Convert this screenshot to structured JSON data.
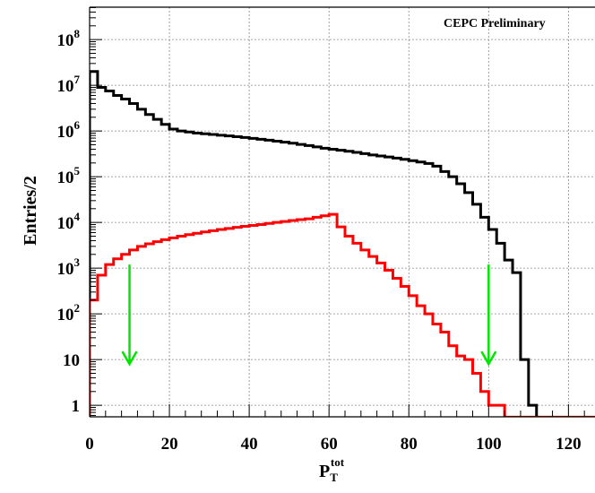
{
  "chart_data": {
    "type": "line",
    "style": "step-histogram",
    "annotation": "CEPC Preliminary",
    "xlabel_main": "P",
    "xlabel_sub": "T",
    "xlabel_sup": "tot",
    "ylabel": "Entries/2",
    "xlim": [
      0,
      127
    ],
    "ylim": [
      0.56,
      500000000
    ],
    "yscale": "log",
    "grid": true,
    "bin_width": 2,
    "x_ticks": [
      {
        "value": 0,
        "label": "0"
      },
      {
        "value": 20,
        "label": "20"
      },
      {
        "value": 40,
        "label": "40"
      },
      {
        "value": 60,
        "label": "60"
      },
      {
        "value": 80,
        "label": "80"
      },
      {
        "value": 100,
        "label": "100"
      },
      {
        "value": 120,
        "label": "120"
      }
    ],
    "y_ticks": [
      {
        "value": 1,
        "base": "1",
        "exp": ""
      },
      {
        "value": 10,
        "base": "10",
        "exp": ""
      },
      {
        "value": 100,
        "base": "10",
        "exp": "2"
      },
      {
        "value": 1000,
        "base": "10",
        "exp": "3"
      },
      {
        "value": 10000,
        "base": "10",
        "exp": "4"
      },
      {
        "value": 100000,
        "base": "10",
        "exp": "5"
      },
      {
        "value": 1000000,
        "base": "10",
        "exp": "6"
      },
      {
        "value": 10000000,
        "base": "10",
        "exp": "7"
      },
      {
        "value": 100000000,
        "base": "10",
        "exp": "8"
      }
    ],
    "series": [
      {
        "color": "#000000",
        "edges_x": [
          0,
          2,
          4,
          6,
          8,
          10,
          12,
          14,
          16,
          18,
          20,
          22,
          24,
          26,
          28,
          30,
          32,
          34,
          36,
          38,
          40,
          42,
          44,
          46,
          48,
          50,
          52,
          54,
          56,
          58,
          60,
          62,
          64,
          66,
          68,
          70,
          72,
          74,
          76,
          78,
          80,
          82,
          84,
          86,
          88,
          90,
          92,
          94,
          96,
          98,
          100,
          102,
          104,
          106,
          108,
          110,
          112
        ],
        "values": [
          20000000,
          9000000,
          7500000,
          6000000,
          5000000,
          4000000,
          3000000,
          2300000,
          1800000,
          1400000,
          1100000,
          1000000,
          950000,
          900000,
          870000,
          840000,
          810000,
          780000,
          750000,
          720000,
          690000,
          660000,
          630000,
          600000,
          570000,
          540000,
          510000,
          480000,
          450000,
          420000,
          400000,
          380000,
          360000,
          340000,
          320000,
          300000,
          285000,
          270000,
          255000,
          240000,
          225000,
          210000,
          195000,
          170000,
          130000,
          100000,
          70000,
          45000,
          25000,
          13000,
          7000,
          3500,
          1500,
          800,
          10,
          1
        ]
      },
      {
        "color": "#ff0000",
        "edges_x": [
          0,
          2,
          4,
          6,
          8,
          10,
          12,
          14,
          16,
          18,
          20,
          22,
          24,
          26,
          28,
          30,
          32,
          34,
          36,
          38,
          40,
          42,
          44,
          46,
          48,
          50,
          52,
          54,
          56,
          58,
          60,
          62,
          64,
          66,
          68,
          70,
          72,
          74,
          76,
          78,
          80,
          82,
          84,
          86,
          88,
          90,
          92,
          94,
          96,
          98,
          100,
          102,
          104,
          106,
          108,
          110,
          112,
          114,
          116,
          118,
          120,
          122,
          124,
          126,
          127
        ],
        "values": [
          200,
          700,
          1200,
          1600,
          2000,
          2500,
          3000,
          3400,
          3800,
          4200,
          4600,
          5000,
          5400,
          5800,
          6200,
          6600,
          7000,
          7400,
          7800,
          8200,
          8600,
          9000,
          9500,
          10000,
          10500,
          11000,
          11500,
          12000,
          13000,
          14000,
          15000,
          8000,
          5000,
          3500,
          2500,
          1800,
          1300,
          900,
          600,
          400,
          250,
          150,
          100,
          60,
          40,
          20,
          12,
          10,
          5,
          2,
          1,
          1,
          0.55,
          0.55,
          0.55,
          0.55,
          0.55,
          0.55,
          0.55,
          0.55,
          0.55,
          0.55,
          0.55,
          0.55
        ]
      }
    ],
    "cut_arrows": [
      {
        "x": 10,
        "y_from": 1200,
        "y_to": 8,
        "color": "#00e600"
      },
      {
        "x": 100,
        "y_from": 1200,
        "y_to": 8,
        "color": "#00e600"
      }
    ]
  }
}
